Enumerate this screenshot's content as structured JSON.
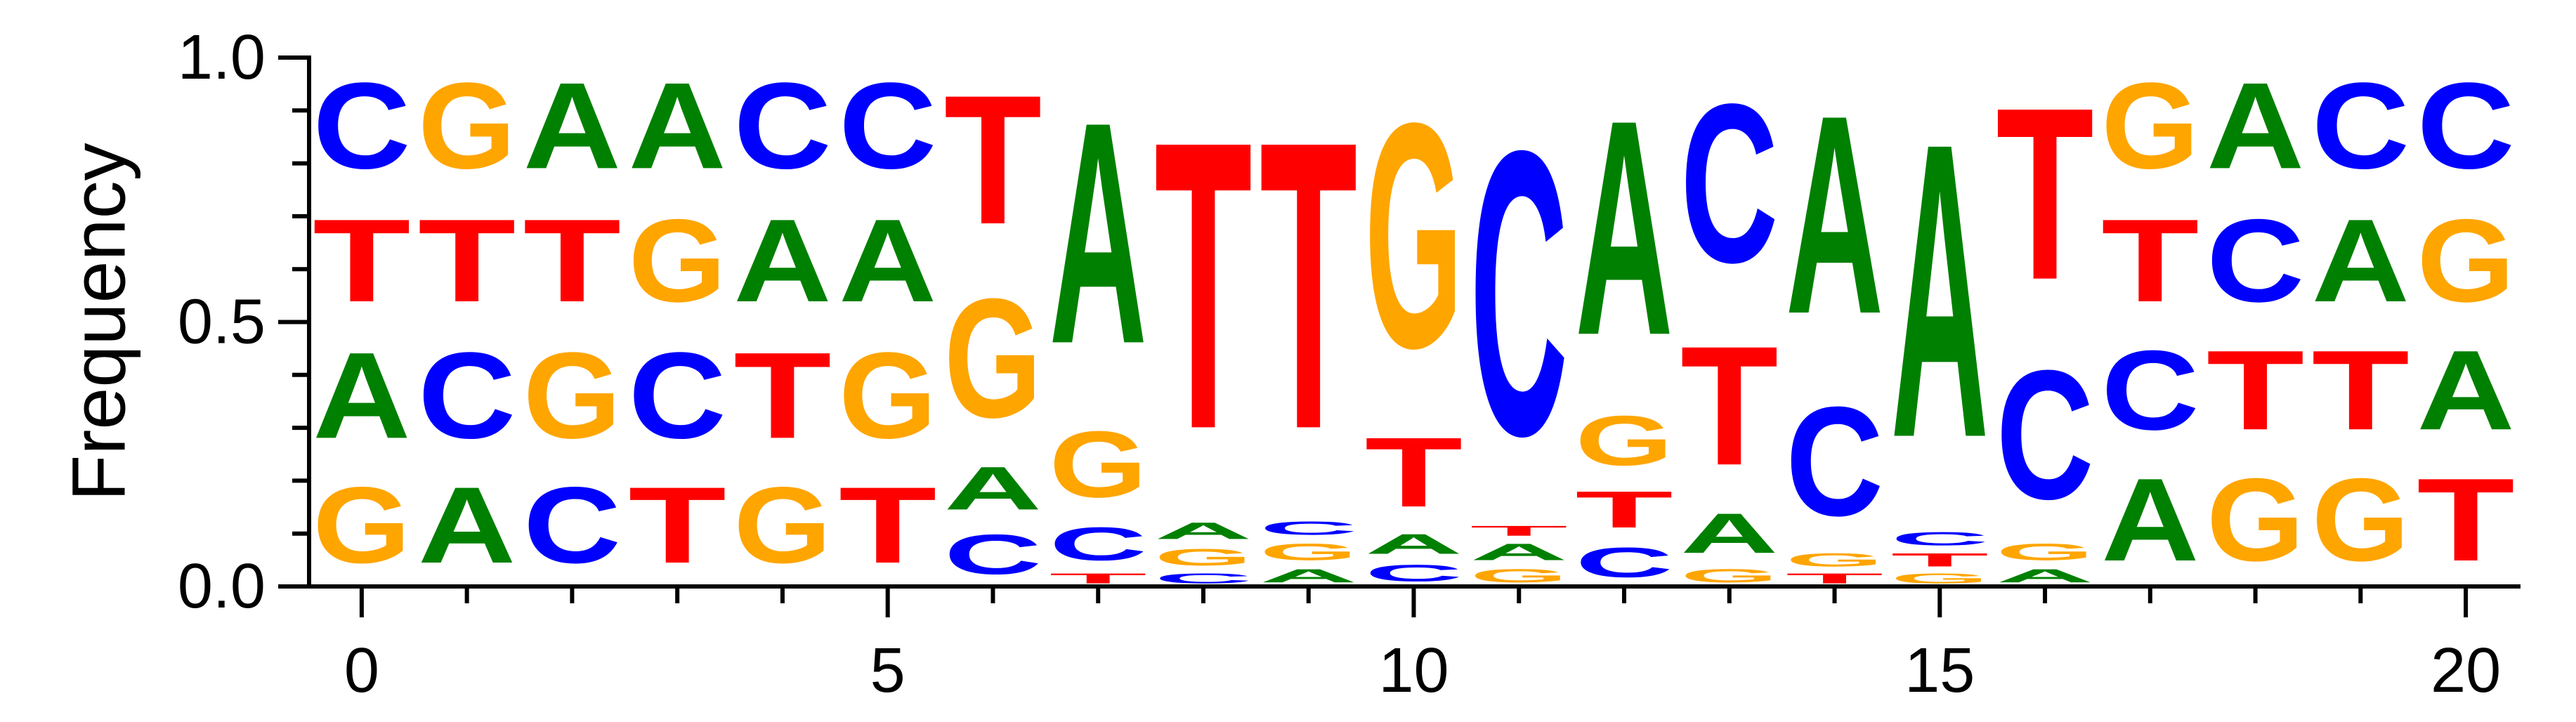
{
  "chart_data": {
    "type": "sequence-logo",
    "ylabel": "Frequency",
    "xlabel": "",
    "ylim": [
      0,
      1
    ],
    "xlim": [
      -0.5,
      20.5
    ],
    "x_ticks": [
      0,
      5,
      10,
      15,
      20
    ],
    "x_tick_labels": [
      "0",
      "5",
      "10",
      "15",
      "20"
    ],
    "y_ticks": [
      0.0,
      0.5,
      1.0
    ],
    "y_tick_labels": [
      "0.0",
      "0.5",
      "1.0"
    ],
    "colors": {
      "A": "#008000",
      "C": "#0000ff",
      "G": "#ffa500",
      "T": "#ff0000"
    },
    "positions": [
      {
        "x": 0,
        "letters": [
          {
            "base": "G",
            "freq": 0.23
          },
          {
            "base": "A",
            "freq": 0.26
          },
          {
            "base": "T",
            "freq": 0.25
          },
          {
            "base": "C",
            "freq": 0.26
          }
        ]
      },
      {
        "x": 1,
        "letters": [
          {
            "base": "A",
            "freq": 0.23
          },
          {
            "base": "C",
            "freq": 0.26
          },
          {
            "base": "T",
            "freq": 0.25
          },
          {
            "base": "G",
            "freq": 0.26
          }
        ]
      },
      {
        "x": 2,
        "letters": [
          {
            "base": "C",
            "freq": 0.23
          },
          {
            "base": "G",
            "freq": 0.26
          },
          {
            "base": "T",
            "freq": 0.25
          },
          {
            "base": "A",
            "freq": 0.26
          }
        ]
      },
      {
        "x": 3,
        "letters": [
          {
            "base": "T",
            "freq": 0.23
          },
          {
            "base": "C",
            "freq": 0.26
          },
          {
            "base": "G",
            "freq": 0.25
          },
          {
            "base": "A",
            "freq": 0.26
          }
        ]
      },
      {
        "x": 4,
        "letters": [
          {
            "base": "G",
            "freq": 0.23
          },
          {
            "base": "T",
            "freq": 0.26
          },
          {
            "base": "A",
            "freq": 0.25
          },
          {
            "base": "C",
            "freq": 0.26
          }
        ]
      },
      {
        "x": 5,
        "letters": [
          {
            "base": "T",
            "freq": 0.23
          },
          {
            "base": "G",
            "freq": 0.26
          },
          {
            "base": "A",
            "freq": 0.25
          },
          {
            "base": "C",
            "freq": 0.26
          }
        ]
      },
      {
        "x": 6,
        "letters": [
          {
            "base": "C",
            "freq": 0.12
          },
          {
            "base": "A",
            "freq": 0.13
          },
          {
            "base": "G",
            "freq": 0.36
          },
          {
            "base": "T",
            "freq": 0.39
          }
        ]
      },
      {
        "x": 7,
        "letters": [
          {
            "base": "T",
            "freq": 0.03
          },
          {
            "base": "C",
            "freq": 0.1
          },
          {
            "base": "G",
            "freq": 0.2
          },
          {
            "base": "A",
            "freq": 0.67
          }
        ]
      },
      {
        "x": 8,
        "letters": [
          {
            "base": "C",
            "freq": 0.03
          },
          {
            "base": "G",
            "freq": 0.05
          },
          {
            "base": "A",
            "freq": 0.05
          },
          {
            "base": "T",
            "freq": 0.87
          }
        ]
      },
      {
        "x": 9,
        "letters": [
          {
            "base": "A",
            "freq": 0.04
          },
          {
            "base": "G",
            "freq": 0.05
          },
          {
            "base": "C",
            "freq": 0.04
          },
          {
            "base": "T",
            "freq": 0.87
          }
        ]
      },
      {
        "x": 10,
        "letters": [
          {
            "base": "C",
            "freq": 0.05
          },
          {
            "base": "A",
            "freq": 0.06
          },
          {
            "base": "T",
            "freq": 0.21
          },
          {
            "base": "G",
            "freq": 0.68
          }
        ]
      },
      {
        "x": 11,
        "letters": [
          {
            "base": "G",
            "freq": 0.04
          },
          {
            "base": "A",
            "freq": 0.05
          },
          {
            "base": "T",
            "freq": 0.03
          },
          {
            "base": "C",
            "freq": 0.86
          }
        ]
      },
      {
        "x": 12,
        "letters": [
          {
            "base": "C",
            "freq": 0.09
          },
          {
            "base": "T",
            "freq": 0.11
          },
          {
            "base": "G",
            "freq": 0.15
          },
          {
            "base": "A",
            "freq": 0.65
          }
        ]
      },
      {
        "x": 13,
        "letters": [
          {
            "base": "G",
            "freq": 0.04
          },
          {
            "base": "A",
            "freq": 0.12
          },
          {
            "base": "T",
            "freq": 0.36
          },
          {
            "base": "C",
            "freq": 0.48
          }
        ]
      },
      {
        "x": 14,
        "letters": [
          {
            "base": "T",
            "freq": 0.03
          },
          {
            "base": "G",
            "freq": 0.04
          },
          {
            "base": "C",
            "freq": 0.33
          },
          {
            "base": "A",
            "freq": 0.6
          }
        ]
      },
      {
        "x": 15,
        "letters": [
          {
            "base": "G",
            "freq": 0.03
          },
          {
            "base": "T",
            "freq": 0.04
          },
          {
            "base": "C",
            "freq": 0.04
          },
          {
            "base": "A",
            "freq": 0.89
          }
        ]
      },
      {
        "x": 16,
        "letters": [
          {
            "base": "A",
            "freq": 0.04
          },
          {
            "base": "G",
            "freq": 0.05
          },
          {
            "base": "C",
            "freq": 0.39
          },
          {
            "base": "T",
            "freq": 0.52
          }
        ]
      },
      {
        "x": 17,
        "letters": [
          {
            "base": "A",
            "freq": 0.25
          },
          {
            "base": "C",
            "freq": 0.24
          },
          {
            "base": "T",
            "freq": 0.25
          },
          {
            "base": "G",
            "freq": 0.26
          }
        ]
      },
      {
        "x": 18,
        "letters": [
          {
            "base": "G",
            "freq": 0.25
          },
          {
            "base": "T",
            "freq": 0.24
          },
          {
            "base": "C",
            "freq": 0.25
          },
          {
            "base": "A",
            "freq": 0.26
          }
        ]
      },
      {
        "x": 19,
        "letters": [
          {
            "base": "G",
            "freq": 0.25
          },
          {
            "base": "T",
            "freq": 0.24
          },
          {
            "base": "A",
            "freq": 0.25
          },
          {
            "base": "C",
            "freq": 0.26
          }
        ]
      },
      {
        "x": 20,
        "letters": [
          {
            "base": "T",
            "freq": 0.25
          },
          {
            "base": "A",
            "freq": 0.24
          },
          {
            "base": "G",
            "freq": 0.25
          },
          {
            "base": "C",
            "freq": 0.26
          }
        ]
      }
    ]
  }
}
